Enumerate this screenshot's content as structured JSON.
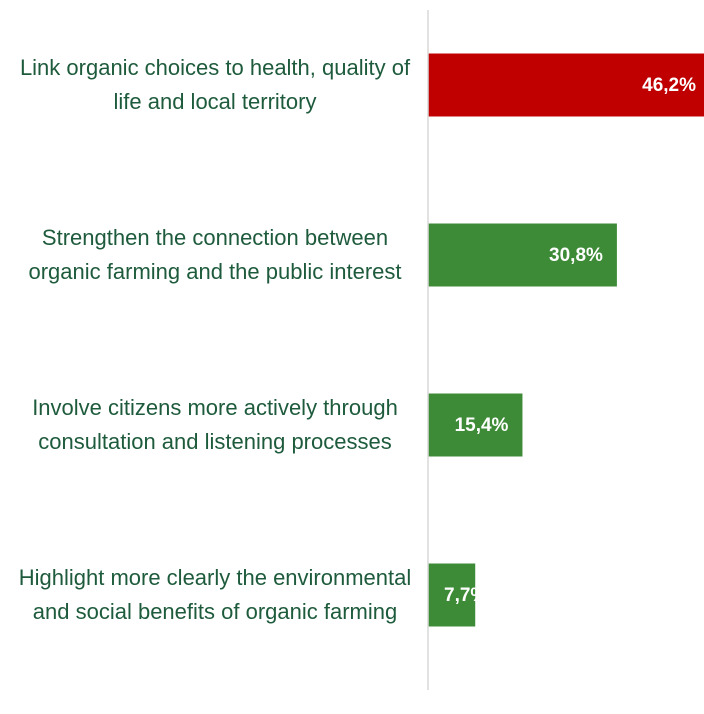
{
  "chart_data": {
    "type": "hbar",
    "categories": [
      "Link organic choices to health, quality of life and local territory",
      "Strengthen the connection between organic farming and the public interest",
      "Involve citizens more actively through consultation and listening processes",
      "Highlight more clearly the environmental and social benefits of organic farming"
    ],
    "values": [
      46.2,
      30.8,
      15.4,
      7.7
    ],
    "value_labels": [
      "46,2%",
      "30,8%",
      "15,4%",
      "7,7%"
    ],
    "colors": [
      "#c00000",
      "#3d8b37",
      "#3d8b37",
      "#3d8b37"
    ],
    "xlim": [
      0,
      45
    ]
  }
}
